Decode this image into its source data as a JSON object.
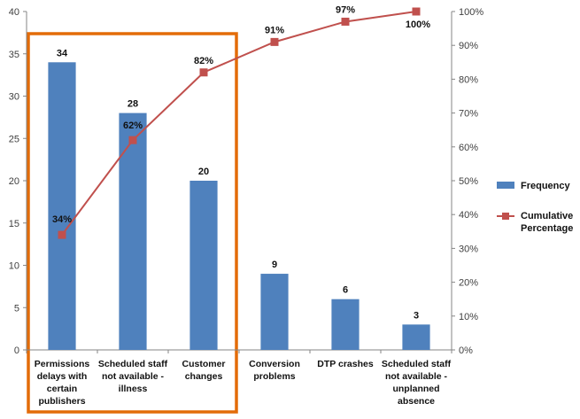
{
  "chart_data": {
    "type": "bar+line",
    "title": "",
    "categories": [
      [
        "Permissions",
        "delays with",
        "certain",
        "publishers"
      ],
      [
        "Scheduled staff",
        "not available -",
        "illness"
      ],
      [
        "Customer",
        "changes"
      ],
      [
        "Conversion",
        "problems"
      ],
      [
        "DTP crashes"
      ],
      [
        "Scheduled staff",
        "not available -",
        "unplanned",
        "absence"
      ]
    ],
    "series": [
      {
        "name": "Frequency",
        "kind": "bar",
        "axis": "left",
        "values": [
          34,
          28,
          20,
          9,
          6,
          3
        ],
        "labels": [
          "34",
          "28",
          "20",
          "9",
          "6",
          "3"
        ],
        "color": "#4f81bd"
      },
      {
        "name": "Cumulative Percentage",
        "legend_lines": [
          "Cumulative",
          "Percentage"
        ],
        "kind": "line",
        "axis": "right",
        "values": [
          34,
          62,
          82,
          91,
          97,
          100
        ],
        "labels": [
          "34%",
          "62%",
          "82%",
          "91%",
          "97%",
          "100%"
        ],
        "color": "#c0504d"
      }
    ],
    "y_left": {
      "min": 0,
      "max": 40,
      "step": 5,
      "ticks": [
        "0",
        "5",
        "10",
        "15",
        "20",
        "25",
        "30",
        "35",
        "40"
      ]
    },
    "y_right": {
      "min": 0,
      "max": 100,
      "step": 10,
      "ticks": [
        "0%",
        "10%",
        "20%",
        "30%",
        "40%",
        "50%",
        "60%",
        "70%",
        "80%",
        "90%",
        "100%"
      ]
    },
    "grid": false,
    "legend_position": "right",
    "highlight": {
      "categories": [
        0,
        1,
        2
      ],
      "color": "#e36c09"
    }
  }
}
